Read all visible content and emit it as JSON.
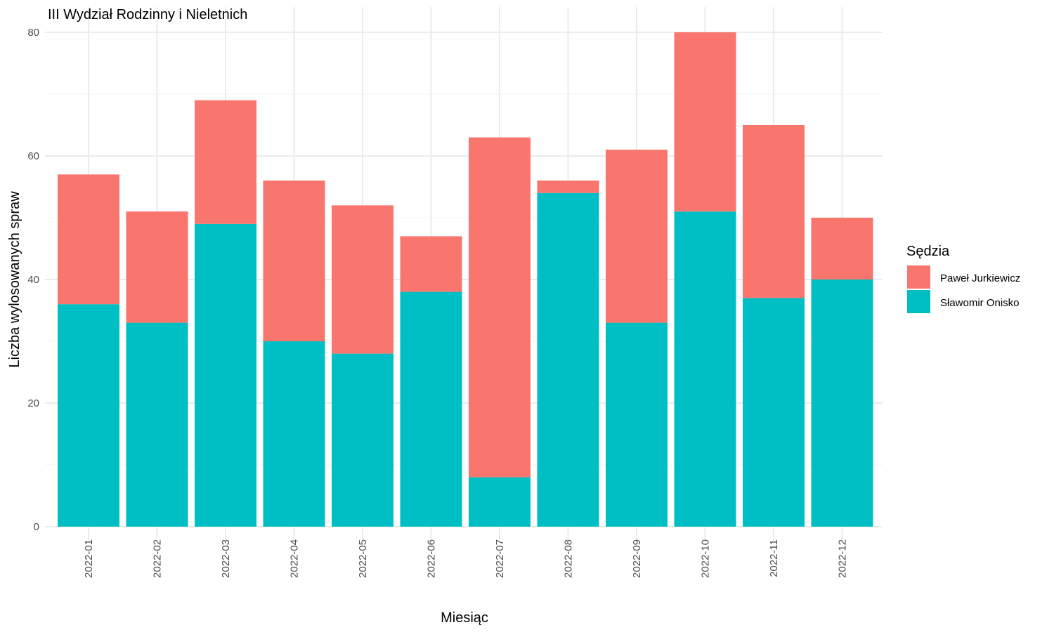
{
  "chart_data": {
    "type": "bar",
    "stacked": true,
    "title": "III Wydział Rodzinny i Nieletnich",
    "xlabel": "Miesiąc",
    "ylabel": "Liczba wylosowanych spraw",
    "ylim": [
      0,
      80
    ],
    "yticks": [
      0,
      20,
      40,
      60,
      80
    ],
    "grid": true,
    "legend_position": "right",
    "legend_title": "Sędzia",
    "categories": [
      "2022-01",
      "2022-02",
      "2022-03",
      "2022-04",
      "2022-05",
      "2022-06",
      "2022-07",
      "2022-08",
      "2022-09",
      "2022-10",
      "2022-11",
      "2022-12"
    ],
    "series": [
      {
        "name": "Paweł Jurkiewicz",
        "color": "#F8766D",
        "values": [
          21,
          18,
          20,
          26,
          24,
          9,
          55,
          2,
          28,
          29,
          28,
          10
        ]
      },
      {
        "name": "Sławomir Onisko",
        "color": "#00BFC4",
        "values": [
          36,
          33,
          49,
          30,
          28,
          38,
          8,
          54,
          33,
          51,
          37,
          40
        ]
      }
    ]
  }
}
